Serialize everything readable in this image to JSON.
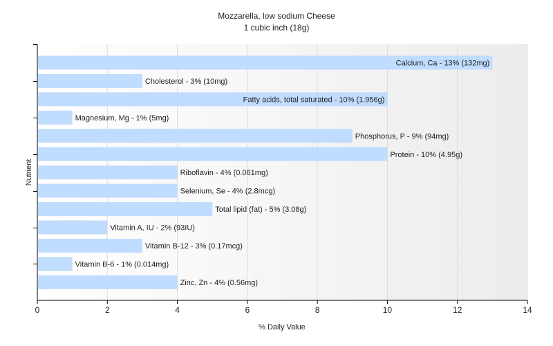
{
  "chart_data": {
    "type": "bar",
    "orientation": "horizontal",
    "title": "Mozzarella, low sodium Cheese",
    "subtitle": "1 cubic inch (18g)",
    "xlabel": "% Daily Value",
    "ylabel": "Nutrient",
    "xlim": [
      0,
      14
    ],
    "xticks": [
      0,
      2,
      4,
      6,
      8,
      10,
      12,
      14
    ],
    "grid": true,
    "bar_color": "#c0dcff",
    "categories": [
      "Calcium, Ca",
      "Cholesterol",
      "Fatty acids, total saturated",
      "Magnesium, Mg",
      "Phosphorus, P",
      "Protein",
      "Riboflavin",
      "Selenium, Se",
      "Total lipid (fat)",
      "Vitamin A, IU",
      "Vitamin B-12",
      "Vitamin B-6",
      "Zinc, Zn"
    ],
    "values": [
      13,
      3,
      10,
      1,
      9,
      10,
      4,
      4,
      5,
      2,
      3,
      1,
      4
    ],
    "data_labels": [
      "Calcium, Ca - 13% (132mg)",
      "Cholesterol - 3% (10mg)",
      "Fatty acids, total saturated - 10% (1.956g)",
      "Magnesium, Mg - 1% (5mg)",
      "Phosphorus, P - 9% (94mg)",
      "Protein - 10% (4.95g)",
      "Riboflavin - 4% (0.061mg)",
      "Selenium, Se - 4% (2.8mcg)",
      "Total lipid (fat) - 5% (3.08g)",
      "Vitamin A, IU - 2% (93IU)",
      "Vitamin B-12 - 3% (0.17mcg)",
      "Vitamin B-6 - 1% (0.014mg)",
      "Zinc, Zn - 4% (0.56mg)"
    ],
    "label_inside": [
      true,
      false,
      true,
      false,
      false,
      false,
      false,
      false,
      false,
      false,
      false,
      false,
      false
    ]
  }
}
